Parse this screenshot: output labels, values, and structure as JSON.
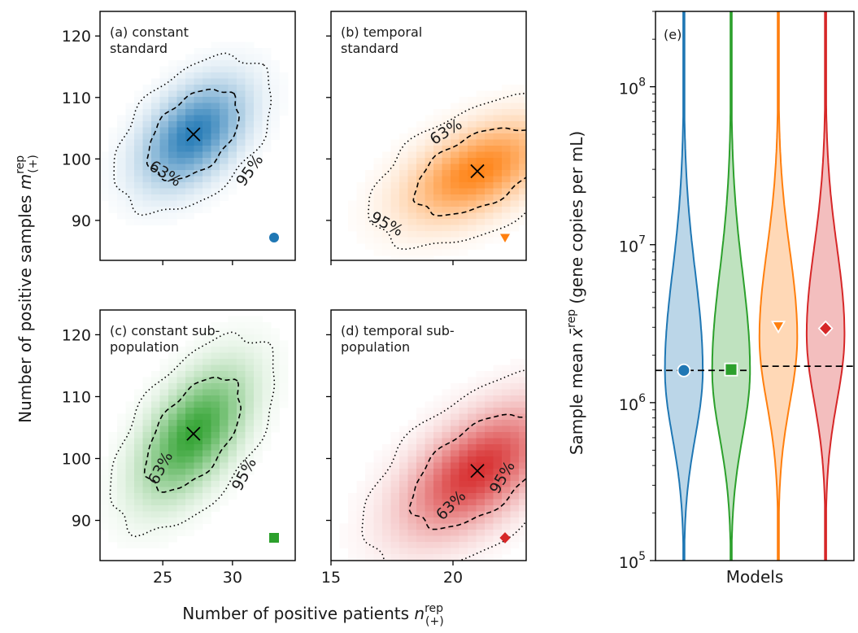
{
  "chart_data": [
    {
      "type": "heatmap",
      "id": "a",
      "panel_label_lines": [
        "(a) constant",
        "standard"
      ],
      "color": "#1f77b4",
      "marker": "circle",
      "center": [
        27.2,
        104
      ],
      "spread": [
        2.3,
        5.2
      ],
      "rho": 0.45,
      "contours": [
        {
          "label": "63%",
          "style": "dashed",
          "label_pos": [
            25.2,
            97.7
          ],
          "label_angle": 32
        },
        {
          "label": "95%",
          "style": "dotted",
          "label_pos": [
            31.2,
            98.2
          ],
          "label_angle": -55
        }
      ],
      "x_ticks": [
        25,
        30
      ],
      "x_tick_labels": [],
      "y_ticks": [
        90,
        100,
        110,
        120
      ],
      "y_tick_labels": [
        "90",
        "100",
        "110",
        "120"
      ],
      "xlim": [
        20.5,
        34.5
      ],
      "ylim": [
        83.5,
        124
      ]
    },
    {
      "type": "heatmap",
      "id": "b",
      "panel_label_lines": [
        "(b) temporal",
        "standard"
      ],
      "color": "#ff7f0e",
      "marker": "triangle-down",
      "center": [
        21.0,
        98
      ],
      "spread": [
        1.8,
        5.0
      ],
      "rho": 0.5,
      "contours": [
        {
          "label": "63%",
          "style": "dashed",
          "label_pos": [
            19.7,
            104.5
          ],
          "label_angle": -32
        },
        {
          "label": "95%",
          "style": "dotted",
          "label_pos": [
            17.3,
            89.5
          ],
          "label_angle": 28
        }
      ],
      "x_ticks": [
        15,
        20
      ],
      "x_tick_labels": [],
      "y_ticks": [
        90,
        100,
        110,
        120
      ],
      "y_tick_labels": [],
      "xlim": [
        15,
        23
      ],
      "ylim": [
        83.5,
        124
      ]
    },
    {
      "type": "heatmap",
      "id": "c",
      "panel_label_lines": [
        "(c) constant sub-",
        "population"
      ],
      "color": "#2ca02c",
      "marker": "square",
      "center": [
        27.2,
        104
      ],
      "spread": [
        2.4,
        6.5
      ],
      "rho": 0.55,
      "contours": [
        {
          "label": "63%",
          "style": "dashed",
          "label_pos": [
            24.8,
            98.5
          ],
          "label_angle": -62
        },
        {
          "label": "95%",
          "style": "dotted",
          "label_pos": [
            30.8,
            97.5
          ],
          "label_angle": -62
        }
      ],
      "x_ticks": [
        25,
        30
      ],
      "x_tick_labels": [
        "25",
        "30"
      ],
      "y_ticks": [
        90,
        100,
        110,
        120
      ],
      "y_tick_labels": [
        "90",
        "100",
        "110",
        "120"
      ],
      "xlim": [
        20.5,
        34.5
      ],
      "ylim": [
        83.5,
        124
      ]
    },
    {
      "type": "heatmap",
      "id": "d",
      "panel_label_lines": [
        "(d) temporal sub-",
        "population"
      ],
      "color": "#d62728",
      "marker": "diamond",
      "center": [
        21.0,
        98
      ],
      "spread": [
        1.9,
        6.5
      ],
      "rho": 0.55,
      "contours": [
        {
          "label": "63%",
          "style": "dashed",
          "label_pos": [
            19.9,
            92.5
          ],
          "label_angle": -45
        },
        {
          "label": "95%",
          "style": "dotted",
          "label_pos": [
            22.0,
            97.0
          ],
          "label_angle": -60
        }
      ],
      "x_ticks": [
        15,
        20
      ],
      "x_tick_labels": [
        "15",
        "20"
      ],
      "y_ticks": [
        90,
        100,
        110,
        120
      ],
      "y_tick_labels": [],
      "xlim": [
        15,
        23
      ],
      "ylim": [
        83.5,
        124
      ]
    },
    {
      "type": "violin",
      "id": "e",
      "panel_label": "(e)",
      "x_label": "Models",
      "y_label_parts": {
        "before": "Sample mean ",
        "symbol": "x̄",
        "sup": "rep",
        "after": " (gene copies per mL)"
      },
      "y_scale": "log",
      "ylim": [
        100000,
        300000000
      ],
      "y_ticks": [
        {
          "base": "10",
          "exp": "5",
          "value": 100000
        },
        {
          "base": "10",
          "exp": "6",
          "value": 1000000
        },
        {
          "base": "10",
          "exp": "7",
          "value": 10000000
        },
        {
          "base": "10",
          "exp": "8",
          "value": 100000000
        }
      ],
      "series": [
        {
          "color": "#1f77b4",
          "marker": "circle",
          "mode": 1600000,
          "marker_value": 1600000,
          "width": 0.8,
          "sig_low": 0.42,
          "sig_high": 0.62
        },
        {
          "color": "#2ca02c",
          "marker": "square",
          "mode": 1600000,
          "marker_value": 1620000,
          "width": 0.8,
          "sig_low": 0.42,
          "sig_high": 0.62
        },
        {
          "color": "#ff7f0e",
          "marker": "triangle-down",
          "mode": 2600000,
          "marker_value": 3050000,
          "width": 0.8,
          "sig_low": 0.42,
          "sig_high": 0.55
        },
        {
          "color": "#d62728",
          "marker": "diamond",
          "mode": 2700000,
          "marker_value": 2950000,
          "width": 0.8,
          "sig_low": 0.42,
          "sig_high": 0.55
        }
      ],
      "reference_lines": [
        {
          "value": 1600000,
          "style": "dashed",
          "x_from": 0.4,
          "x_to": 2.35
        },
        {
          "value": 1700000,
          "style": "dashed",
          "x_from": 2.65,
          "x_to": 4.6
        }
      ]
    }
  ],
  "shared": {
    "x_label": {
      "text": "Number of positive patients ",
      "symbol": "n",
      "sup": "rep",
      "sub": "(+)"
    },
    "y_label": {
      "text": "Number of positive samples ",
      "symbol": "m",
      "sup": "rep",
      "sub": "(+)"
    }
  }
}
